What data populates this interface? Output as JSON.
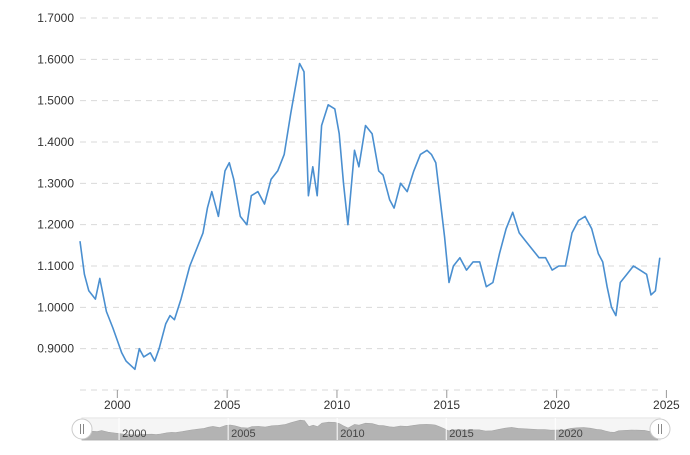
{
  "chart_data": {
    "type": "line",
    "title": "",
    "xlabel": "",
    "ylabel": "",
    "grid": true,
    "legend": "none",
    "xlim": [
      1998.3,
      2024.8
    ],
    "ylim": [
      0.8,
      1.7
    ],
    "y_ticks": [
      "0.9000",
      "1.0000",
      "1.1000",
      "1.2000",
      "1.3000",
      "1.4000",
      "1.5000",
      "1.6000",
      "1.7000"
    ],
    "x_ticks": [
      "2000",
      "2005",
      "2010",
      "2015",
      "2020",
      "2025"
    ],
    "series": [
      {
        "color": "#4a8fd0",
        "x": [
          1998.3,
          1998.5,
          1998.7,
          1999.0,
          1999.2,
          1999.5,
          1999.8,
          2000.0,
          2000.2,
          2000.4,
          2000.6,
          2000.8,
          2001.0,
          2001.2,
          2001.5,
          2001.7,
          2001.9,
          2002.2,
          2002.4,
          2002.6,
          2002.9,
          2003.1,
          2003.3,
          2003.6,
          2003.9,
          2004.1,
          2004.3,
          2004.6,
          2004.9,
          2005.1,
          2005.3,
          2005.6,
          2005.9,
          2006.1,
          2006.4,
          2006.7,
          2007.0,
          2007.3,
          2007.6,
          2007.9,
          2008.2,
          2008.3,
          2008.5,
          2008.7,
          2008.9,
          2009.1,
          2009.3,
          2009.6,
          2009.9,
          2010.1,
          2010.3,
          2010.5,
          2010.8,
          2011.0,
          2011.3,
          2011.6,
          2011.9,
          2012.1,
          2012.4,
          2012.6,
          2012.9,
          2013.2,
          2013.5,
          2013.8,
          2014.1,
          2014.3,
          2014.5,
          2014.7,
          2014.9,
          2015.1,
          2015.3,
          2015.6,
          2015.9,
          2016.2,
          2016.5,
          2016.8,
          2017.1,
          2017.4,
          2017.7,
          2018.0,
          2018.3,
          2018.6,
          2018.9,
          2019.2,
          2019.5,
          2019.8,
          2020.1,
          2020.4,
          2020.7,
          2021.0,
          2021.3,
          2021.6,
          2021.9,
          2022.1,
          2022.3,
          2022.5,
          2022.7,
          2022.9,
          2023.2,
          2023.5,
          2023.8,
          2024.1,
          2024.3,
          2024.5,
          2024.7
        ],
        "values": [
          1.16,
          1.08,
          1.04,
          1.02,
          1.07,
          0.99,
          0.95,
          0.92,
          0.89,
          0.87,
          0.86,
          0.85,
          0.9,
          0.88,
          0.89,
          0.87,
          0.9,
          0.96,
          0.98,
          0.97,
          1.02,
          1.06,
          1.1,
          1.14,
          1.18,
          1.24,
          1.28,
          1.22,
          1.33,
          1.35,
          1.31,
          1.22,
          1.2,
          1.27,
          1.28,
          1.25,
          1.31,
          1.33,
          1.37,
          1.47,
          1.56,
          1.59,
          1.57,
          1.27,
          1.34,
          1.27,
          1.44,
          1.49,
          1.48,
          1.42,
          1.3,
          1.2,
          1.38,
          1.34,
          1.44,
          1.42,
          1.33,
          1.32,
          1.26,
          1.24,
          1.3,
          1.28,
          1.33,
          1.37,
          1.38,
          1.37,
          1.35,
          1.26,
          1.17,
          1.06,
          1.1,
          1.12,
          1.09,
          1.11,
          1.11,
          1.05,
          1.06,
          1.13,
          1.19,
          1.23,
          1.18,
          1.16,
          1.14,
          1.12,
          1.12,
          1.09,
          1.1,
          1.1,
          1.18,
          1.21,
          1.22,
          1.19,
          1.13,
          1.11,
          1.05,
          1.0,
          0.98,
          1.06,
          1.08,
          1.1,
          1.09,
          1.08,
          1.03,
          1.04,
          1.12
        ]
      }
    ]
  },
  "navigator": {
    "labels": [
      "2000",
      "2005",
      "2010",
      "2015",
      "2020"
    ],
    "left_handle_icon": "pause-icon",
    "right_handle_icon": "pause-icon"
  }
}
